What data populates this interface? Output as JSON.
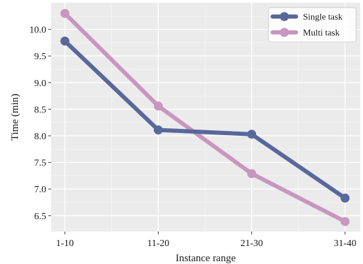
{
  "chart_data": {
    "type": "line",
    "xlabel": "Instance range",
    "ylabel": "Time (min)",
    "categories": [
      "1-10",
      "11-20",
      "21-30",
      "31-40"
    ],
    "ylim": [
      6.2,
      10.5
    ],
    "yticks": [
      "6.5",
      "7.0",
      "7.5",
      "8.0",
      "8.5",
      "9.0",
      "9.5",
      "10.0"
    ],
    "grid": true,
    "legend_position": "top-right",
    "series": [
      {
        "name": "Single task",
        "color": "#59689b",
        "values": [
          9.78,
          8.11,
          8.03,
          6.83
        ]
      },
      {
        "name": "Multi task",
        "color": "#c896bf",
        "values": [
          10.3,
          8.56,
          7.29,
          6.39
        ]
      }
    ]
  },
  "colors": {
    "plot_background": "#ebebeb",
    "grid": "#ffffff"
  }
}
